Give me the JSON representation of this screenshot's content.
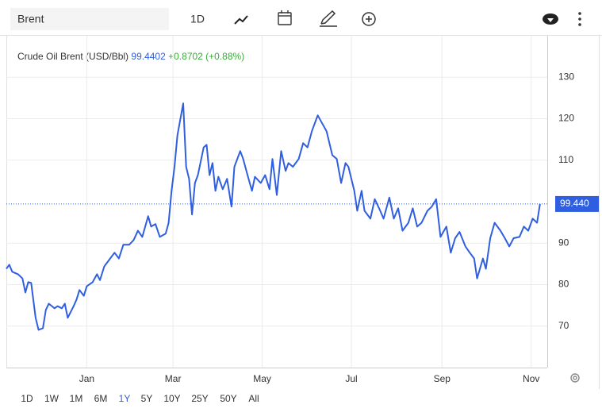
{
  "toolbar": {
    "search": "Brent",
    "interval": "1D"
  },
  "chart_data": {
    "type": "line",
    "title": "Crude Oil Brent (USD/Bbl)",
    "last_value": 99.4402,
    "last_value_label": "99.440",
    "change_label": "+0.8702 (+0.88%)",
    "color": "#2f5fe0",
    "x": [
      0,
      2,
      4,
      8,
      11,
      13,
      15,
      17,
      20,
      22,
      25,
      27,
      29,
      33,
      35,
      38,
      40,
      42,
      46,
      48,
      50,
      53,
      55,
      59,
      62,
      64,
      67,
      71,
      74,
      77,
      80,
      84,
      87,
      90,
      93,
      97,
      99,
      102,
      105,
      109,
      111,
      113,
      115,
      117,
      119,
      121,
      123,
      125,
      127,
      129,
      131,
      135,
      137,
      139,
      141,
      143,
      145,
      148,
      151,
      154,
      156,
      160,
      162,
      165,
      168,
      170,
      174,
      177,
      180,
      182,
      185,
      188,
      191,
      193,
      196,
      200,
      203,
      206,
      209,
      213,
      216,
      219,
      223,
      226,
      229,
      232,
      234,
      238,
      240,
      243,
      245,
      249,
      252,
      255,
      258,
      262,
      265,
      268,
      271,
      275,
      278,
      281,
      284,
      288,
      291,
      294,
      297,
      301,
      304,
      307,
      310,
      314,
      317,
      320,
      322,
      326,
      328,
      331,
      334,
      338,
      341,
      344,
      347,
      351,
      354,
      357,
      360,
      363,
      365
    ],
    "values": [
      83.8,
      84.8,
      83.1,
      82.5,
      81.5,
      78.1,
      80.6,
      80.4,
      72,
      69.1,
      69.5,
      73.9,
      75.4,
      74.3,
      74.8,
      74.3,
      75.4,
      72,
      74.8,
      76.4,
      78.7,
      77.3,
      79.6,
      80.6,
      82.5,
      81.1,
      84.4,
      86.3,
      87.7,
      86.3,
      89.6,
      89.6,
      90.7,
      93,
      91.5,
      96.5,
      94,
      94.6,
      91.5,
      92.3,
      94.9,
      102.6,
      108.4,
      116,
      119.8,
      123.7,
      108.4,
      105.5,
      96.9,
      104.5,
      106.4,
      113.1,
      113.7,
      106.4,
      109.3,
      102.6,
      106,
      103,
      105.5,
      98.8,
      108.4,
      112.2,
      110.3,
      106.4,
      102.6,
      106,
      104.5,
      106.4,
      103,
      110.3,
      101.6,
      112.2,
      107.4,
      109.3,
      108.4,
      110.3,
      114.1,
      113.1,
      117,
      120.8,
      118.9,
      117,
      111.2,
      110.3,
      104.5,
      109.3,
      108.4,
      102.6,
      97.8,
      102.6,
      97.8,
      95.9,
      100.6,
      98.4,
      95.9,
      101,
      95.9,
      98.4,
      93,
      94.9,
      98.4,
      94,
      94.9,
      97.8,
      98.8,
      100.6,
      91.5,
      94,
      87.7,
      91.2,
      92.7,
      89.2,
      87.7,
      86.3,
      81.5,
      86.3,
      83.8,
      91.2,
      94.9,
      93,
      91.2,
      89.2,
      91.2,
      91.5,
      94,
      93,
      95.9,
      94.9,
      99.4402
    ],
    "xlim": [
      0,
      370
    ],
    "xticks": [
      {
        "value": 55,
        "label": "Jan"
      },
      {
        "value": 114,
        "label": "Mar"
      },
      {
        "value": 175,
        "label": "May"
      },
      {
        "value": 236,
        "label": "Jul"
      },
      {
        "value": 298,
        "label": "Sep"
      },
      {
        "value": 359,
        "label": "Nov"
      }
    ],
    "ylim": [
      60,
      140
    ],
    "yticks": [
      70,
      80,
      90,
      110,
      120,
      130
    ],
    "grid": true
  },
  "ranges": [
    "1D",
    "1W",
    "1M",
    "6M",
    "1Y",
    "5Y",
    "10Y",
    "25Y",
    "50Y",
    "All"
  ],
  "selected": "1Y"
}
